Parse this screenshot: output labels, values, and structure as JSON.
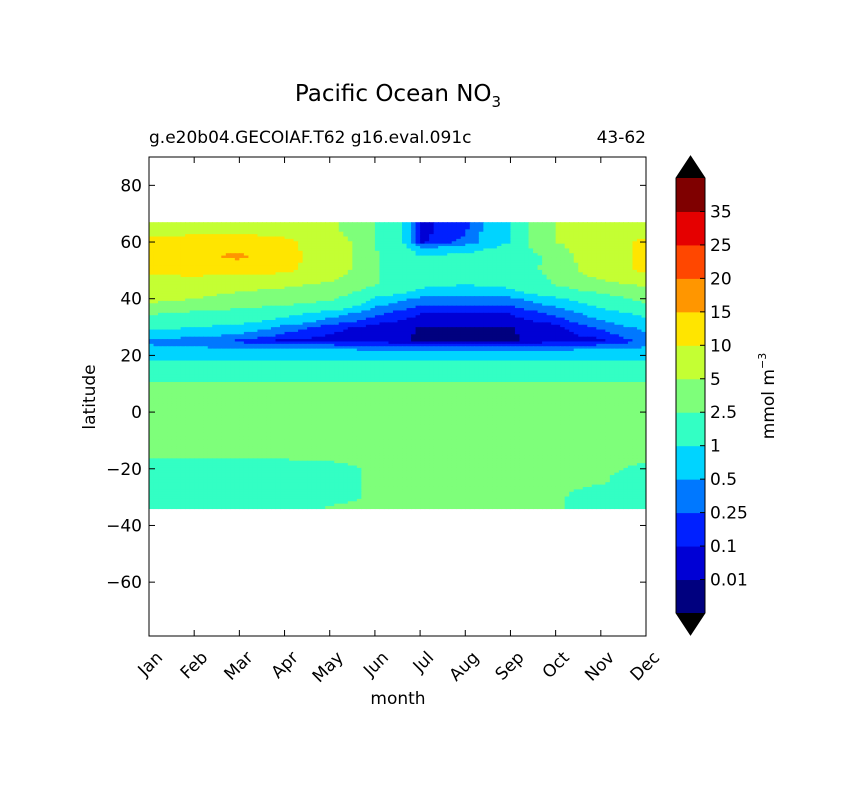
{
  "chart_data": {
    "type": "heatmap",
    "title": "Pacific Ocean NO",
    "title_subscript": "3",
    "subtitle_left": "g.e20b04.GECOIAF.T62 g16.eval.091c",
    "subtitle_right": "43-62",
    "xlabel": "month",
    "ylabel": "latitude",
    "x_tick_labels": [
      "Jan",
      "Feb",
      "Mar",
      "Apr",
      "May",
      "Jun",
      "Jul",
      "Aug",
      "Sep",
      "Oct",
      "Nov",
      "Dec"
    ],
    "y_ticks": [
      80,
      60,
      40,
      20,
      0,
      -20,
      -40,
      -60
    ],
    "y_tick_labels": [
      "80",
      "60",
      "40",
      "20",
      "0",
      "−20",
      "−40",
      "−60"
    ],
    "ylim": [
      -79,
      90
    ],
    "data_lat_range": [
      -34,
      67
    ],
    "grid": false,
    "colorbar": {
      "label": "mmol m",
      "label_superscript": "−3",
      "tick_labels": [
        "0.01",
        "0.1",
        "0.25",
        "0.5",
        "1",
        "2.5",
        "5",
        "10",
        "15",
        "20",
        "25",
        "35"
      ],
      "levels": [
        0.01,
        0.1,
        0.25,
        0.5,
        1,
        2.5,
        5,
        10,
        15,
        20,
        25,
        35
      ],
      "colors": [
        "#00007f",
        "#0000d5",
        "#0020ff",
        "#0078ff",
        "#00d4ff",
        "#33ffc4",
        "#7eff7a",
        "#c4ff33",
        "#ffe500",
        "#ff9600",
        "#ff4700",
        "#e50000",
        "#7f0000"
      ],
      "extend": "both",
      "under_color": "#000000",
      "over_color": "#000000"
    },
    "series": [
      {
        "months": [
          "Jan",
          "Feb",
          "Mar",
          "Apr",
          "May",
          "Jun",
          "Jul",
          "Aug",
          "Sep",
          "Oct",
          "Nov",
          "Dec"
        ],
        "latitudes": [
          -34,
          -30,
          -25,
          -20,
          -15,
          -10,
          -5,
          0,
          5,
          10,
          15,
          20,
          25,
          30,
          35,
          40,
          45,
          50,
          55,
          60,
          65,
          67
        ],
        "values": [
          [
            1.5,
            1.5,
            1.5,
            1.6,
            2.7,
            2.8,
            2.8,
            2.8,
            2.8,
            2.7,
            1.6,
            1.5
          ],
          [
            1.5,
            1.5,
            1.6,
            1.8,
            2.0,
            2.7,
            2.8,
            2.8,
            2.8,
            2.7,
            1.8,
            1.6
          ],
          [
            1.6,
            1.6,
            1.7,
            1.8,
            2.2,
            2.6,
            2.8,
            2.8,
            2.8,
            2.8,
            2.6,
            1.8
          ],
          [
            1.8,
            1.8,
            1.8,
            1.9,
            2.2,
            2.6,
            2.8,
            2.8,
            2.8,
            2.8,
            2.7,
            2.3
          ],
          [
            2.7,
            2.7,
            2.8,
            2.8,
            2.8,
            2.8,
            2.8,
            2.8,
            2.8,
            2.8,
            2.8,
            2.7
          ],
          [
            3.0,
            3.0,
            3.0,
            3.0,
            3.0,
            3.0,
            3.0,
            3.0,
            3.0,
            3.0,
            3.0,
            3.0
          ],
          [
            3.0,
            3.0,
            3.0,
            3.0,
            3.0,
            3.0,
            3.0,
            3.0,
            3.0,
            3.0,
            3.0,
            3.0
          ],
          [
            3.0,
            3.0,
            3.0,
            3.0,
            3.0,
            3.0,
            3.0,
            3.0,
            3.0,
            3.0,
            3.0,
            3.0
          ],
          [
            2.9,
            2.9,
            2.8,
            2.8,
            2.8,
            2.8,
            2.8,
            2.8,
            2.8,
            2.8,
            2.8,
            2.8
          ],
          [
            2.7,
            2.6,
            2.6,
            2.6,
            2.6,
            2.6,
            2.6,
            2.6,
            2.6,
            2.6,
            2.6,
            2.7
          ],
          [
            1.5,
            1.5,
            1.5,
            1.5,
            1.5,
            1.5,
            1.5,
            1.5,
            1.5,
            1.5,
            1.5,
            1.5
          ],
          [
            0.8,
            0.8,
            0.8,
            0.8,
            0.8,
            0.8,
            0.8,
            0.8,
            0.8,
            0.8,
            0.8,
            0.8
          ],
          [
            0.4,
            0.3,
            0.2,
            0.05,
            0.05,
            0.03,
            0.005,
            0.005,
            0.005,
            0.03,
            0.05,
            0.3
          ],
          [
            1.2,
            1.0,
            0.8,
            0.4,
            0.15,
            0.05,
            0.005,
            0.005,
            0.005,
            0.05,
            0.3,
            0.6
          ],
          [
            2.7,
            2.2,
            1.8,
            1.3,
            0.7,
            0.3,
            0.1,
            0.1,
            0.1,
            0.3,
            0.7,
            1.2
          ],
          [
            6.0,
            5.0,
            4.0,
            3.5,
            2.8,
            0.8,
            0.4,
            0.4,
            0.4,
            0.8,
            1.5,
            3.0
          ],
          [
            8.0,
            7.0,
            6.0,
            5.5,
            4.5,
            2.6,
            1.2,
            1.0,
            1.2,
            2.6,
            4.0,
            5.5
          ],
          [
            11.0,
            12.0,
            12.0,
            11.0,
            7.0,
            2.6,
            1.5,
            1.5,
            2.0,
            2.8,
            7.0,
            11.0
          ],
          [
            12.0,
            14.0,
            16.0,
            12.0,
            7.0,
            2.6,
            1.0,
            1.2,
            1.5,
            3.0,
            8.0,
            11.0
          ],
          [
            11.0,
            11.5,
            12.0,
            11.0,
            7.0,
            2.6,
            0.05,
            0.3,
            1.0,
            5.0,
            7.0,
            11.0
          ],
          [
            8.0,
            8.5,
            8.5,
            8.0,
            5.5,
            2.6,
            0.05,
            0.2,
            1.0,
            5.0,
            5.5,
            8.0
          ],
          [
            8.0,
            8.5,
            8.5,
            8.0,
            5.5,
            2.6,
            0.05,
            0.2,
            1.0,
            5.0,
            5.5,
            8.0
          ]
        ]
      }
    ]
  }
}
